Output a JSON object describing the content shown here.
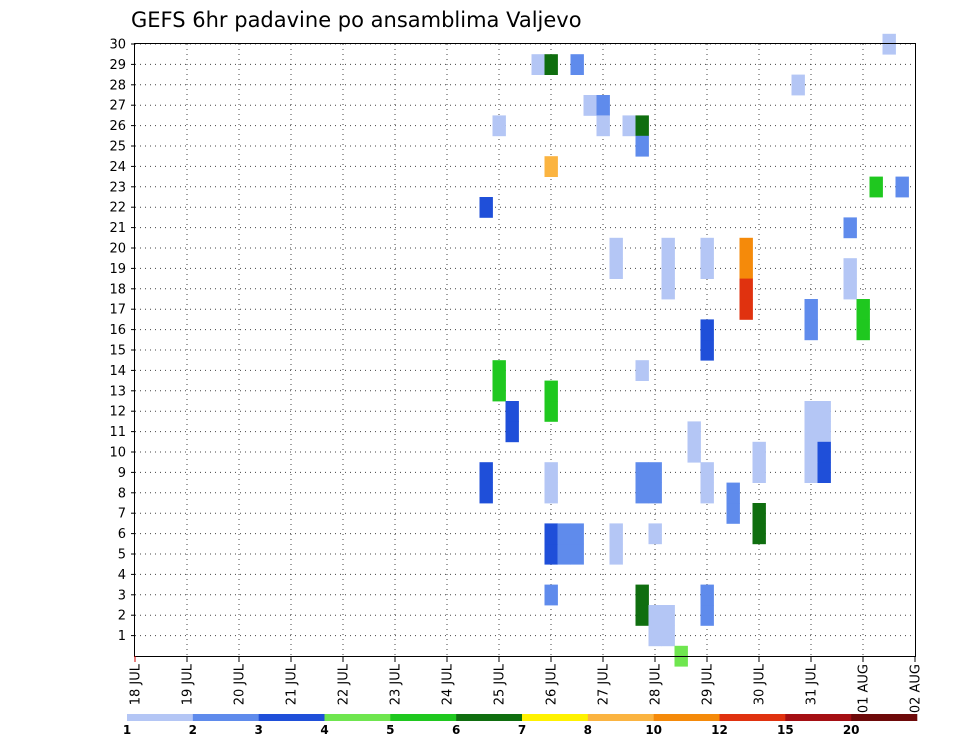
{
  "chart_data": {
    "type": "heatmap",
    "title": "GEFS 6hr padavine po ansamblima Valjevo",
    "xlabel": "",
    "ylabel": "",
    "x_tick_labels": [
      "18 JUL",
      "19 JUL",
      "20 JUL",
      "21 JUL",
      "22 JUL",
      "23 JUL",
      "24 JUL",
      "25 JUL",
      "26 JUL",
      "27 JUL",
      "28 JUL",
      "29 JUL",
      "30 JUL",
      "31 JUL",
      "01 AUG",
      "02 AUG"
    ],
    "x_range_days": [
      0,
      15
    ],
    "y_tick_labels": [
      "1",
      "2",
      "3",
      "4",
      "5",
      "6",
      "7",
      "8",
      "9",
      "10",
      "11",
      "12",
      "13",
      "14",
      "15",
      "16",
      "17",
      "18",
      "19",
      "20",
      "21",
      "22",
      "23",
      "24",
      "25",
      "26",
      "27",
      "28",
      "29",
      "30"
    ],
    "y_range": [
      0,
      30
    ],
    "grid": true,
    "colorbar": {
      "labels": [
        "1",
        "2",
        "3",
        "4",
        "5",
        "6",
        "7",
        "8",
        "10",
        "12",
        "15",
        "20"
      ],
      "colors": [
        "#b4c6f5",
        "#5f8bec",
        "#1f4fd9",
        "#6fe64f",
        "#1fc81f",
        "#0f6e0f",
        "#fff200",
        "#fbb441",
        "#f58a0a",
        "#e0320f",
        "#a50f14",
        "#6e0a0a"
      ]
    },
    "cells": [
      {
        "t": 14.5,
        "m": 30,
        "v": 1.5
      },
      {
        "t": 7.75,
        "m": 29,
        "v": 1.5
      },
      {
        "t": 8,
        "m": 29,
        "v": 6.5
      },
      {
        "t": 8.5,
        "m": 29,
        "v": 2.5
      },
      {
        "t": 12.75,
        "m": 28,
        "v": 1.5
      },
      {
        "t": 8.75,
        "m": 27,
        "v": 1.5
      },
      {
        "t": 9,
        "m": 27,
        "v": 2.5
      },
      {
        "t": 7,
        "m": 26,
        "v": 1.5
      },
      {
        "t": 9,
        "m": 26,
        "v": 1.5
      },
      {
        "t": 9.5,
        "m": 26,
        "v": 1.5
      },
      {
        "t": 9.75,
        "m": 26,
        "v": 6.5
      },
      {
        "t": 9.75,
        "m": 25,
        "v": 2.5
      },
      {
        "t": 8,
        "m": 24,
        "v": 9
      },
      {
        "t": 14.25,
        "m": 23,
        "v": 5.5
      },
      {
        "t": 14.75,
        "m": 23,
        "v": 2.5
      },
      {
        "t": 6.75,
        "m": 22,
        "v": 3.5
      },
      {
        "t": 13.75,
        "m": 21,
        "v": 2.5
      },
      {
        "t": 9.25,
        "m": 20,
        "v": 1.5
      },
      {
        "t": 10.25,
        "m": 20,
        "v": 1.5
      },
      {
        "t": 11,
        "m": 20,
        "v": 1.5
      },
      {
        "t": 11.75,
        "m": 20,
        "v": 11
      },
      {
        "t": 13.75,
        "m": 19,
        "v": 1.5
      },
      {
        "t": 9.25,
        "m": 19,
        "v": 1.5
      },
      {
        "t": 10.25,
        "m": 19,
        "v": 1.5
      },
      {
        "t": 11,
        "m": 19,
        "v": 1.5
      },
      {
        "t": 11.75,
        "m": 19,
        "v": 11
      },
      {
        "t": 10.25,
        "m": 18,
        "v": 1.5
      },
      {
        "t": 13.75,
        "m": 18,
        "v": 1.5
      },
      {
        "t": 11.75,
        "m": 17,
        "v": 13
      },
      {
        "t": 14,
        "m": 16,
        "v": 5.5
      },
      {
        "t": 11.75,
        "m": 18,
        "v": 13
      },
      {
        "t": 13,
        "m": 16,
        "v": 2.5
      },
      {
        "t": 14,
        "m": 17,
        "v": 5.5
      },
      {
        "t": 13,
        "m": 17,
        "v": 2.5
      },
      {
        "t": 11,
        "m": 15,
        "v": 3.5
      },
      {
        "t": 11,
        "m": 16,
        "v": 3.5
      },
      {
        "t": 9.75,
        "m": 14,
        "v": 1.5
      },
      {
        "t": 7,
        "m": 13,
        "v": 5.5
      },
      {
        "t": 7,
        "m": 14,
        "v": 5.5
      },
      {
        "t": 8,
        "m": 12,
        "v": 5.5
      },
      {
        "t": 8,
        "m": 13,
        "v": 5.5
      },
      {
        "t": 7.25,
        "m": 11,
        "v": 3.5
      },
      {
        "t": 7.25,
        "m": 12,
        "v": 3.5
      },
      {
        "t": 13,
        "m": 11,
        "v": 1.5
      },
      {
        "t": 13.25,
        "m": 11,
        "v": 1.5
      },
      {
        "t": 13,
        "m": 12,
        "v": 1.5
      },
      {
        "t": 13.25,
        "m": 12,
        "v": 1.5
      },
      {
        "t": 10.75,
        "m": 10,
        "v": 1.5
      },
      {
        "t": 10.75,
        "m": 11,
        "v": 1.5
      },
      {
        "t": 12,
        "m": 9,
        "v": 1.5
      },
      {
        "t": 12,
        "m": 10,
        "v": 1.5
      },
      {
        "t": 13,
        "m": 9,
        "v": 1.5
      },
      {
        "t": 13.25,
        "m": 9,
        "v": 3.5
      },
      {
        "t": 13,
        "m": 10,
        "v": 1.5
      },
      {
        "t": 13.25,
        "m": 10,
        "v": 3.5
      },
      {
        "t": 6.75,
        "m": 8,
        "v": 3.5
      },
      {
        "t": 6.75,
        "m": 9,
        "v": 3.5
      },
      {
        "t": 8,
        "m": 8,
        "v": 1.5
      },
      {
        "t": 8,
        "m": 9,
        "v": 1.5
      },
      {
        "t": 9.75,
        "m": 8,
        "v": 2.5
      },
      {
        "t": 10,
        "m": 8,
        "v": 2.5
      },
      {
        "t": 9.75,
        "m": 9,
        "v": 2.5
      },
      {
        "t": 10,
        "m": 9,
        "v": 2.5
      },
      {
        "t": 11,
        "m": 8,
        "v": 1.5
      },
      {
        "t": 11,
        "m": 9,
        "v": 1.5
      },
      {
        "t": 11.5,
        "m": 7,
        "v": 2.5
      },
      {
        "t": 11.5,
        "m": 8,
        "v": 2.5
      },
      {
        "t": 12,
        "m": 6,
        "v": 6.5
      },
      {
        "t": 12,
        "m": 7,
        "v": 6.5
      },
      {
        "t": 10,
        "m": 6,
        "v": 1.5
      },
      {
        "t": 8,
        "m": 5,
        "v": 3.5
      },
      {
        "t": 8.25,
        "m": 5,
        "v": 2.5
      },
      {
        "t": 8.5,
        "m": 5,
        "v": 2.5
      },
      {
        "t": 9.25,
        "m": 5,
        "v": 1.5
      },
      {
        "t": 8,
        "m": 6,
        "v": 3.5
      },
      {
        "t": 8.25,
        "m": 6,
        "v": 2.5
      },
      {
        "t": 8.5,
        "m": 6,
        "v": 2.5
      },
      {
        "t": 9.25,
        "m": 6,
        "v": 1.5
      },
      {
        "t": 8,
        "m": 3,
        "v": 2.5
      },
      {
        "t": 9.75,
        "m": 2,
        "v": 6.5
      },
      {
        "t": 9.75,
        "m": 3,
        "v": 6.5
      },
      {
        "t": 11,
        "m": 2,
        "v": 2.5
      },
      {
        "t": 11,
        "m": 3,
        "v": 2.5
      },
      {
        "t": 10,
        "m": 1,
        "v": 1.5
      },
      {
        "t": 10.25,
        "m": 1,
        "v": 1.5
      },
      {
        "t": 10,
        "m": 2,
        "v": 1.5
      },
      {
        "t": 10.25,
        "m": 2,
        "v": 1.5
      },
      {
        "t": 10.5,
        "m": 0,
        "v": 4.5
      }
    ]
  }
}
